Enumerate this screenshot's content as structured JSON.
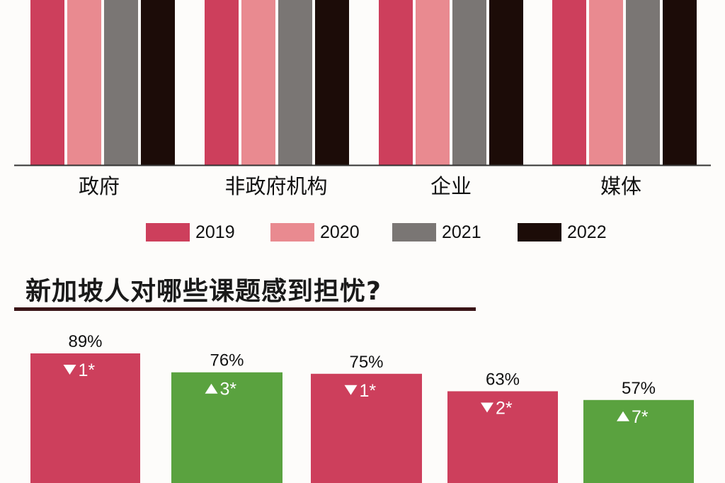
{
  "colors": {
    "y2019": "#cd3f5c",
    "y2020": "#e98a90",
    "y2021": "#7a7674",
    "y2022": "#1c0c08",
    "decrease": "#cd3f5c",
    "increase": "#5aa23f"
  },
  "chart_data": [
    {
      "type": "bar",
      "categories": [
        "政府",
        "非政府机构",
        "企业",
        "媒体"
      ],
      "series": [
        {
          "name": "2019",
          "values": [
            null,
            null,
            null,
            null
          ]
        },
        {
          "name": "2020",
          "values": [
            null,
            null,
            null,
            null
          ]
        },
        {
          "name": "2021",
          "values": [
            null,
            null,
            null,
            null
          ]
        },
        {
          "name": "2022",
          "values": [
            null,
            null,
            null,
            null
          ]
        }
      ],
      "legend": [
        "2019",
        "2020",
        "2021",
        "2022"
      ],
      "legend_position": "bottom"
    },
    {
      "type": "bar",
      "title": "新加坡人对哪些课题感到担忧?",
      "values": [
        89,
        76,
        75,
        63,
        57
      ],
      "value_labels": [
        "89%",
        "76%",
        "75%",
        "63%",
        "57%"
      ],
      "changes": [
        {
          "direction": "down",
          "amount": 1,
          "label": "1*"
        },
        {
          "direction": "up",
          "amount": 3,
          "label": "3*"
        },
        {
          "direction": "down",
          "amount": 1,
          "label": "1*"
        },
        {
          "direction": "down",
          "amount": 2,
          "label": "2*"
        },
        {
          "direction": "up",
          "amount": 7,
          "label": "7*"
        }
      ]
    }
  ]
}
